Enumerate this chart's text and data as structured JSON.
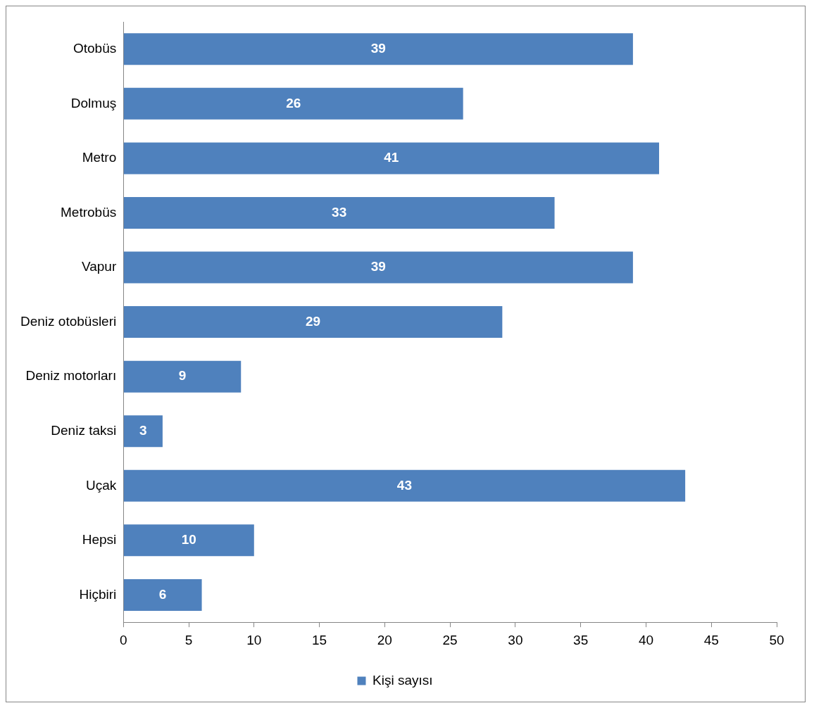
{
  "chart_data": {
    "type": "bar",
    "orientation": "horizontal",
    "categories": [
      "Otobüs",
      "Dolmuş",
      "Metro",
      "Metrobüs",
      "Vapur",
      "Deniz otobüsleri",
      "Deniz motorları",
      "Deniz taksi",
      "Uçak",
      "Hepsi",
      "Hiçbiri"
    ],
    "series": [
      {
        "name": "Kişi sayısı",
        "color": "#4f81bd",
        "values": [
          39,
          26,
          41,
          33,
          39,
          29,
          9,
          3,
          43,
          10,
          6
        ]
      }
    ],
    "xlim": [
      0,
      50
    ],
    "xticks": [
      0,
      5,
      10,
      15,
      20,
      25,
      30,
      35,
      40,
      45,
      50
    ],
    "data_labels": true,
    "legend": "bottom"
  }
}
